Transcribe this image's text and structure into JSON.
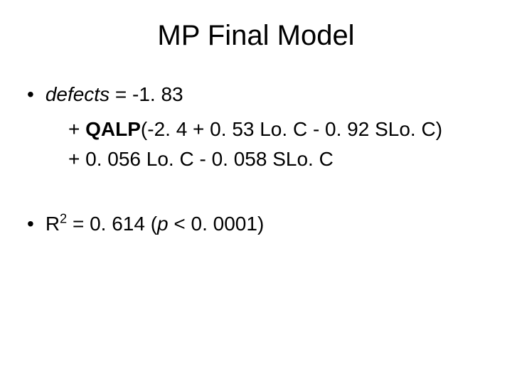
{
  "title": "MP Final Model",
  "bullet1": {
    "defects_label": "defects",
    "equals_intercept": " = -1. 83",
    "line2_prefix": "+ ",
    "line2_qalp": "QALP",
    "line2_rest": "(-2. 4 + 0. 53 Lo. C - 0. 92 SLo. C)",
    "line3": "+ 0. 056 Lo. C  -  0. 058 SLo. C"
  },
  "bullet2": {
    "r_label": "R",
    "r_exp": "2",
    "r_equals": " = 0. 614 (",
    "p_label": "p",
    "p_rest": " < 0. 0001)"
  },
  "styling": {
    "background_color": "#ffffff",
    "text_color": "#000000",
    "title_fontsize": 40,
    "body_fontsize": 28,
    "font_family": "Arial"
  }
}
